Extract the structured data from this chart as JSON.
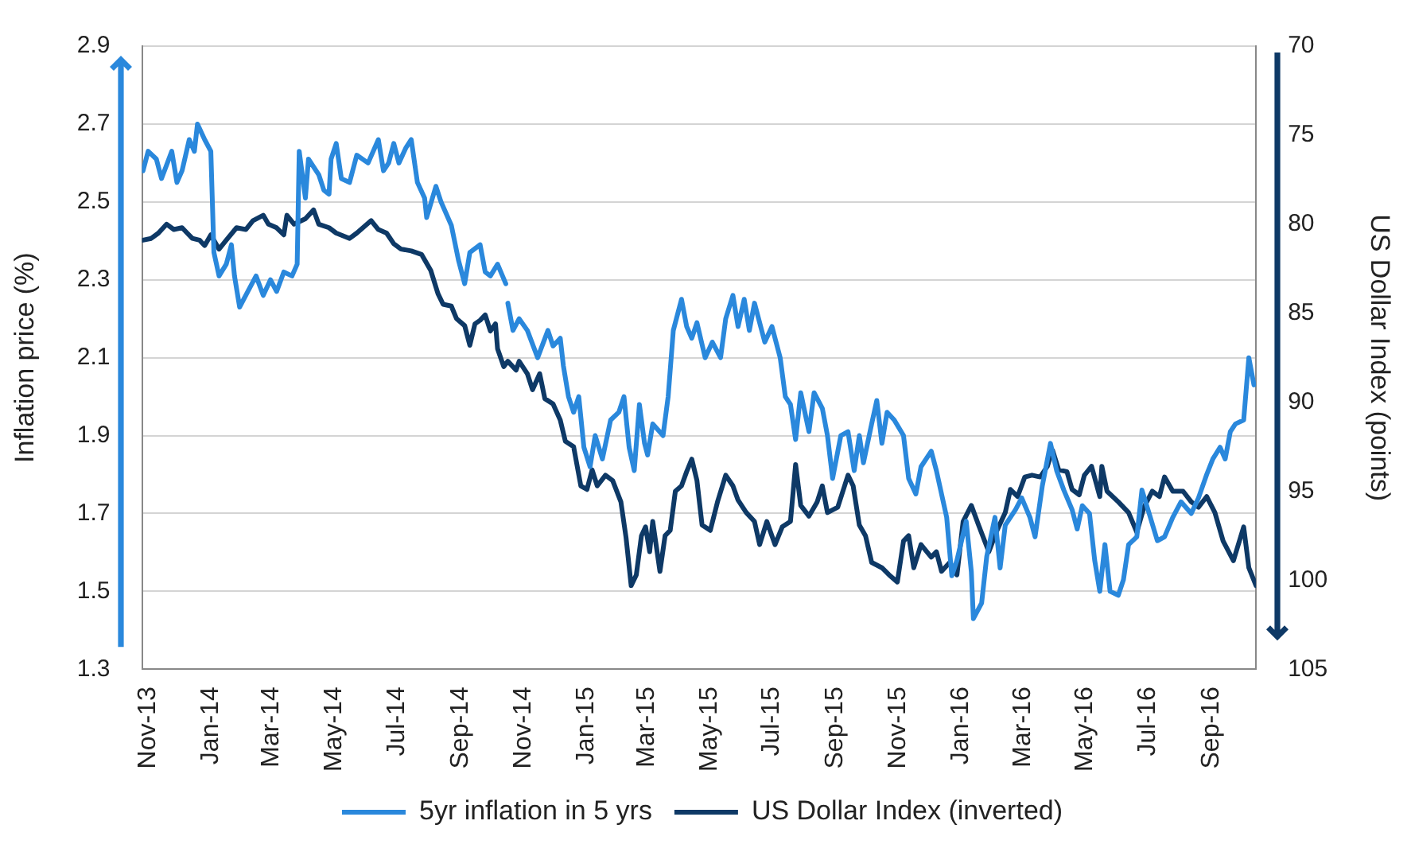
{
  "chart_data": {
    "type": "line",
    "ylabel": "Inflation price (%)",
    "y2label": "US Dollar Index (points)",
    "xlim": [
      "2013-10-26",
      "2016-10-14"
    ],
    "xticks": [
      {
        "value": "2013-11-01",
        "label": "Nov-13"
      },
      {
        "value": "2014-01-01",
        "label": "Jan-14"
      },
      {
        "value": "2014-03-01",
        "label": "Mar-14"
      },
      {
        "value": "2014-05-01",
        "label": "May-14"
      },
      {
        "value": "2014-07-01",
        "label": "Jul-14"
      },
      {
        "value": "2014-09-01",
        "label": "Sep-14"
      },
      {
        "value": "2014-11-01",
        "label": "Nov-14"
      },
      {
        "value": "2015-01-01",
        "label": "Jan-15"
      },
      {
        "value": "2015-03-01",
        "label": "Mar-15"
      },
      {
        "value": "2015-05-01",
        "label": "May-15"
      },
      {
        "value": "2015-07-01",
        "label": "Jul-15"
      },
      {
        "value": "2015-09-01",
        "label": "Sep-15"
      },
      {
        "value": "2015-11-01",
        "label": "Nov-15"
      },
      {
        "value": "2016-01-01",
        "label": "Jan-16"
      },
      {
        "value": "2016-03-01",
        "label": "Mar-16"
      },
      {
        "value": "2016-05-01",
        "label": "May-16"
      },
      {
        "value": "2016-07-01",
        "label": "Jul-16"
      },
      {
        "value": "2016-09-01",
        "label": "Sep-16"
      }
    ],
    "ylim": [
      1.3,
      2.9
    ],
    "yticks": [
      1.3,
      1.5,
      1.7,
      1.9,
      2.1,
      2.3,
      2.5,
      2.7,
      2.9
    ],
    "y2lim": [
      105,
      70
    ],
    "y2ticks": [
      70,
      75,
      80,
      85,
      90,
      95,
      100,
      105
    ],
    "grid": "y",
    "legend": "bottom",
    "line_style": "solid",
    "series": [
      {
        "name": "5yr inflation in 5 yrs",
        "color": "#2a88dc",
        "x": [
          "2013-10-27",
          "2013-11-01",
          "2013-11-09",
          "2013-11-14",
          "2013-11-24",
          "2013-11-29",
          "2013-12-04",
          "2013-12-11",
          "2013-12-16",
          "2013-12-19",
          "2013-12-26",
          "2014-01-01",
          "2014-01-04",
          "2014-01-09",
          "2014-01-16",
          "2014-01-21",
          "2014-01-24",
          "2014-01-29",
          "2014-02-06",
          "2014-02-14",
          "2014-02-21",
          "2014-02-28",
          "2014-03-06",
          "2014-03-13",
          "2014-03-21",
          "2014-03-26",
          "2014-03-28",
          "2014-04-03",
          "2014-04-06",
          "2014-04-16",
          "2014-04-21",
          "2014-04-26",
          "2014-04-28",
          "2014-05-03",
          "2014-05-08",
          "2014-05-16",
          "2014-05-23",
          "2014-06-03",
          "2014-06-13",
          "2014-06-18",
          "2014-06-23",
          "2014-06-28",
          "2014-07-03",
          "2014-07-10",
          "2014-07-15",
          "2014-07-21",
          "2014-07-28",
          "2014-07-30",
          "2014-08-08",
          "2014-08-13",
          "2014-08-23",
          "2014-08-30",
          "2014-09-05",
          "2014-09-10",
          "2014-09-20",
          "2014-09-25",
          "2014-09-30",
          "2014-10-07",
          "2014-10-15",
          "2014-10-16",
          "2014-10-17",
          "2014-10-22",
          "2014-10-28",
          "2014-11-05",
          "2014-11-15",
          "2014-11-25",
          "2014-11-30",
          "2014-12-07",
          "2014-12-10",
          "2014-12-15",
          "2014-12-20",
          "2014-12-25",
          "2014-12-30",
          "2015-01-05",
          "2015-01-10",
          "2015-01-17",
          "2015-01-25",
          "2015-02-02",
          "2015-02-07",
          "2015-02-12",
          "2015-02-17",
          "2015-02-22",
          "2015-02-27",
          "2015-03-02",
          "2015-03-07",
          "2015-03-17",
          "2015-03-22",
          "2015-03-27",
          "2015-04-04",
          "2015-04-09",
          "2015-04-14",
          "2015-04-19",
          "2015-04-27",
          "2015-05-04",
          "2015-05-12",
          "2015-05-17",
          "2015-05-24",
          "2015-05-29",
          "2015-06-04",
          "2015-06-09",
          "2015-06-14",
          "2015-06-24",
          "2015-07-01",
          "2015-07-09",
          "2015-07-14",
          "2015-07-19",
          "2015-07-24",
          "2015-07-29",
          "2015-08-06",
          "2015-08-11",
          "2015-08-19",
          "2015-08-24",
          "2015-08-29",
          "2015-09-06",
          "2015-09-13",
          "2015-09-19",
          "2015-09-24",
          "2015-09-28",
          "2015-10-06",
          "2015-10-11",
          "2015-10-16",
          "2015-10-21",
          "2015-10-28",
          "2015-11-06",
          "2015-11-11",
          "2015-11-18",
          "2015-11-23",
          "2015-12-03",
          "2015-12-08",
          "2015-12-18",
          "2015-12-23",
          "2015-12-28",
          "2016-01-06",
          "2016-01-11",
          "2016-01-13",
          "2016-01-21",
          "2016-01-26",
          "2016-02-03",
          "2016-02-08",
          "2016-02-13",
          "2016-02-23",
          "2016-02-29",
          "2016-03-08",
          "2016-03-13",
          "2016-03-20",
          "2016-03-28",
          "2016-04-03",
          "2016-04-10",
          "2016-04-18",
          "2016-04-23",
          "2016-04-28",
          "2016-05-05",
          "2016-05-10",
          "2016-05-15",
          "2016-05-20",
          "2016-05-25",
          "2016-06-02",
          "2016-06-07",
          "2016-06-12",
          "2016-06-20",
          "2016-06-25",
          "2016-07-02",
          "2016-07-10",
          "2016-07-17",
          "2016-07-25",
          "2016-08-02",
          "2016-08-12",
          "2016-08-19",
          "2016-08-27",
          "2016-09-02",
          "2016-09-09",
          "2016-09-14",
          "2016-09-19",
          "2016-09-24",
          "2016-10-02",
          "2016-10-07",
          "2016-10-12"
        ],
        "values": [
          2.58,
          2.63,
          2.61,
          2.56,
          2.63,
          2.55,
          2.58,
          2.66,
          2.63,
          2.7,
          2.66,
          2.63,
          2.37,
          2.31,
          2.34,
          2.39,
          2.31,
          2.23,
          2.27,
          2.31,
          2.26,
          2.3,
          2.27,
          2.32,
          2.31,
          2.34,
          2.63,
          2.51,
          2.61,
          2.57,
          2.53,
          2.52,
          2.61,
          2.65,
          2.56,
          2.55,
          2.62,
          2.6,
          2.66,
          2.58,
          2.6,
          2.65,
          2.6,
          2.64,
          2.66,
          2.55,
          2.51,
          2.46,
          2.54,
          2.5,
          2.44,
          2.35,
          2.29,
          2.37,
          2.39,
          2.32,
          2.31,
          2.34,
          2.29,
          null,
          2.24,
          2.17,
          2.2,
          2.17,
          2.1,
          2.17,
          2.13,
          2.15,
          2.08,
          2.0,
          1.96,
          2.0,
          1.87,
          1.82,
          1.9,
          1.84,
          1.94,
          1.96,
          2.0,
          1.87,
          1.81,
          1.98,
          1.88,
          1.85,
          1.93,
          1.9,
          2.0,
          2.17,
          2.25,
          2.18,
          2.15,
          2.19,
          2.1,
          2.14,
          2.1,
          2.2,
          2.26,
          2.18,
          2.25,
          2.17,
          2.24,
          2.14,
          2.18,
          2.1,
          2.0,
          1.98,
          1.89,
          2.01,
          1.91,
          2.01,
          1.97,
          1.9,
          1.79,
          1.9,
          1.91,
          1.81,
          1.9,
          1.83,
          1.93,
          1.99,
          1.88,
          1.96,
          1.94,
          1.9,
          1.79,
          1.75,
          1.82,
          1.86,
          1.81,
          1.69,
          1.54,
          1.58,
          1.68,
          1.55,
          1.43,
          1.47,
          1.59,
          1.69,
          1.56,
          1.67,
          1.71,
          1.74,
          1.69,
          1.64,
          1.77,
          1.88,
          1.81,
          1.76,
          1.71,
          1.66,
          1.72,
          1.7,
          1.58,
          1.5,
          1.62,
          1.5,
          1.49,
          1.53,
          1.62,
          1.64,
          1.76,
          1.7,
          1.63,
          1.64,
          1.69,
          1.73,
          1.7,
          1.74,
          1.8,
          1.84,
          1.87,
          1.84,
          1.91,
          1.93,
          1.94,
          2.1,
          2.03
        ]
      },
      {
        "name": "US Dollar Index (inverted)",
        "color": "#0e3966",
        "axis": "y2",
        "x": [
          "2013-10-27",
          "2013-11-04",
          "2013-11-11",
          "2013-11-19",
          "2013-11-26",
          "2013-12-04",
          "2013-12-09",
          "2013-12-14",
          "2013-12-21",
          "2013-12-26",
          "2014-01-01",
          "2014-01-09",
          "2014-01-16",
          "2014-01-26",
          "2014-02-04",
          "2014-02-11",
          "2014-02-21",
          "2014-02-26",
          "2014-03-06",
          "2014-03-13",
          "2014-03-16",
          "2014-03-23",
          "2014-04-03",
          "2014-04-11",
          "2014-04-16",
          "2014-04-26",
          "2014-05-03",
          "2014-05-16",
          "2014-05-23",
          "2014-06-06",
          "2014-06-13",
          "2014-06-21",
          "2014-06-28",
          "2014-07-05",
          "2014-07-15",
          "2014-07-25",
          "2014-08-03",
          "2014-08-10",
          "2014-08-15",
          "2014-08-23",
          "2014-08-28",
          "2014-09-05",
          "2014-09-10",
          "2014-09-15",
          "2014-09-20",
          "2014-09-25",
          "2014-09-30",
          "2014-10-05",
          "2014-10-07",
          "2014-10-13",
          "2014-10-17",
          "2014-10-25",
          "2014-10-28",
          "2014-11-05",
          "2014-11-10",
          "2014-11-17",
          "2014-11-22",
          "2014-11-30",
          "2014-12-07",
          "2014-12-12",
          "2014-12-20",
          "2014-12-27",
          "2015-01-02",
          "2015-01-07",
          "2015-01-12",
          "2015-01-20",
          "2015-01-27",
          "2015-02-04",
          "2015-02-09",
          "2015-02-14",
          "2015-02-19",
          "2015-02-24",
          "2015-02-28",
          "2015-03-04",
          "2015-03-07",
          "2015-03-14",
          "2015-03-19",
          "2015-03-24",
          "2015-03-29",
          "2015-04-04",
          "2015-04-09",
          "2015-04-14",
          "2015-04-19",
          "2015-04-24",
          "2015-05-02",
          "2015-05-09",
          "2015-05-17",
          "2015-05-24",
          "2015-05-29",
          "2015-06-06",
          "2015-06-14",
          "2015-06-19",
          "2015-06-26",
          "2015-07-04",
          "2015-07-11",
          "2015-07-19",
          "2015-07-24",
          "2015-07-29",
          "2015-08-06",
          "2015-08-14",
          "2015-08-19",
          "2015-08-24",
          "2015-09-03",
          "2015-09-13",
          "2015-09-18",
          "2015-09-24",
          "2015-09-30",
          "2015-10-06",
          "2015-10-16",
          "2015-10-23",
          "2015-10-31",
          "2015-11-06",
          "2015-11-11",
          "2015-11-16",
          "2015-11-23",
          "2015-12-03",
          "2015-12-08",
          "2015-12-13",
          "2015-12-21",
          "2015-12-28",
          "2016-01-03",
          "2016-01-11",
          "2016-01-18",
          "2016-01-28",
          "2016-02-05",
          "2016-02-13",
          "2016-02-18",
          "2016-02-25",
          "2016-03-03",
          "2016-03-10",
          "2016-03-18",
          "2016-03-25",
          "2016-03-30",
          "2016-04-05",
          "2016-04-13",
          "2016-04-18",
          "2016-04-25",
          "2016-04-30",
          "2016-05-07",
          "2016-05-15",
          "2016-05-17",
          "2016-05-22",
          "2016-06-02",
          "2016-06-12",
          "2016-06-20",
          "2016-06-27",
          "2016-07-05",
          "2016-07-12",
          "2016-07-17",
          "2016-07-25",
          "2016-08-04",
          "2016-08-12",
          "2016-08-19",
          "2016-08-27",
          "2016-09-04",
          "2016-09-12",
          "2016-09-22",
          "2016-10-02",
          "2016-10-07",
          "2016-10-14"
        ],
        "values": [
          80.9,
          80.8,
          80.5,
          80.0,
          80.3,
          80.2,
          80.5,
          80.8,
          80.9,
          81.2,
          80.6,
          81.4,
          80.9,
          80.2,
          80.3,
          79.8,
          79.5,
          80.0,
          80.2,
          80.6,
          79.5,
          80.0,
          79.7,
          79.2,
          80.0,
          80.2,
          80.5,
          80.8,
          80.5,
          79.8,
          80.3,
          80.5,
          81.1,
          81.4,
          81.5,
          81.7,
          82.6,
          83.9,
          84.5,
          84.6,
          85.3,
          85.7,
          86.8,
          85.6,
          85.4,
          85.1,
          86.0,
          85.6,
          87.0,
          88.0,
          87.7,
          88.2,
          87.7,
          88.4,
          89.3,
          88.4,
          89.8,
          90.1,
          91.0,
          92.2,
          92.5,
          94.7,
          94.9,
          93.8,
          94.7,
          94.1,
          94.4,
          95.6,
          97.6,
          100.3,
          99.7,
          97.5,
          97.0,
          98.4,
          96.7,
          99.5,
          97.5,
          97.2,
          95.0,
          94.7,
          93.9,
          93.2,
          94.4,
          96.9,
          97.2,
          95.6,
          94.1,
          94.7,
          95.5,
          96.2,
          96.7,
          98.0,
          96.7,
          98.0,
          97.0,
          96.7,
          93.5,
          95.8,
          96.4,
          95.6,
          94.7,
          96.2,
          95.9,
          94.1,
          94.7,
          96.9,
          97.5,
          99.0,
          99.3,
          99.7,
          100.1,
          97.8,
          97.5,
          99.3,
          98.0,
          98.7,
          98.4,
          99.5,
          99.0,
          99.7,
          96.7,
          95.8,
          96.9,
          98.4,
          97.2,
          96.2,
          94.9,
          95.3,
          94.2,
          94.1,
          94.2,
          93.6,
          92.7,
          93.8,
          93.9,
          94.9,
          95.2,
          94.1,
          93.6,
          95.3,
          93.6,
          95.0,
          95.6,
          96.2,
          97.3,
          95.9,
          95.0,
          95.3,
          94.2,
          95.0,
          95.0,
          95.6,
          95.9,
          95.3,
          96.2,
          97.8,
          98.9,
          97.0,
          99.3,
          100.3
        ]
      }
    ]
  }
}
